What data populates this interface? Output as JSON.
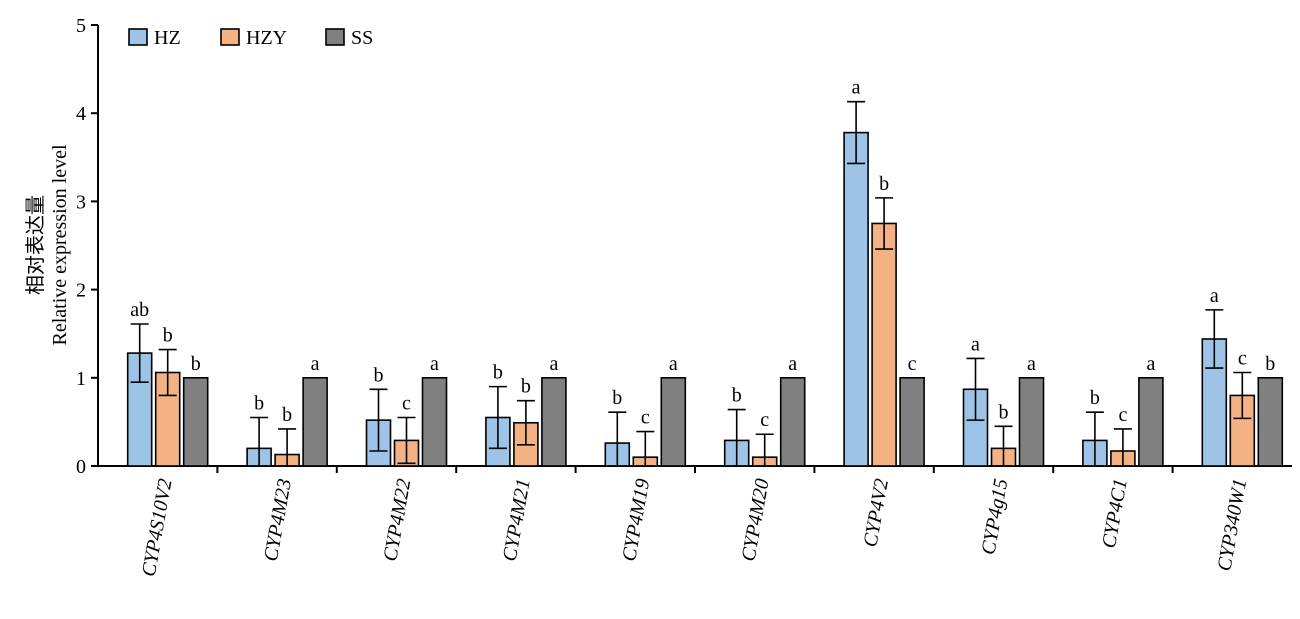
{
  "chart_data": {
    "type": "bar",
    "title": "",
    "ylabel_cn": "相对表达量",
    "ylabel": "Relative expression level",
    "xlabel": "",
    "ylim": [
      0,
      5
    ],
    "yticks": [
      "0",
      "1",
      "2",
      "3",
      "4",
      "5"
    ],
    "legend_position": "top-left",
    "categories": [
      "CYP4S10V2",
      "CYP4M23",
      "CYP4M22",
      "CYP4M21",
      "CYP4M19",
      "CYP4M20",
      "CYP4V2",
      "CYP4g15",
      "CYP4C1",
      "CYP340W1"
    ],
    "series": [
      {
        "name": "HZ",
        "color": "#9dc3e6",
        "values": [
          1.28,
          0.2,
          0.52,
          0.55,
          0.26,
          0.29,
          3.78,
          0.87,
          0.29,
          1.44
        ],
        "errors": [
          0.33,
          0.35,
          0.35,
          0.35,
          0.35,
          0.35,
          0.35,
          0.35,
          0.32,
          0.33
        ],
        "sig": [
          "ab",
          "b",
          "b",
          "b",
          "b",
          "b",
          "a",
          "a",
          "b",
          "a"
        ]
      },
      {
        "name": "HZY",
        "color": "#f4b183",
        "values": [
          1.06,
          0.13,
          0.29,
          0.49,
          0.1,
          0.1,
          2.75,
          0.2,
          0.17,
          0.8
        ],
        "errors": [
          0.26,
          0.29,
          0.26,
          0.25,
          0.29,
          0.26,
          0.29,
          0.25,
          0.25,
          0.26
        ],
        "sig": [
          "b",
          "b",
          "c",
          "b",
          "c",
          "c",
          "b",
          "b",
          "c",
          "c"
        ]
      },
      {
        "name": "SS",
        "color": "#808080",
        "values": [
          1,
          1,
          1,
          1,
          1,
          1,
          1,
          1,
          1,
          1
        ],
        "errors": [
          0,
          0,
          0,
          0,
          0,
          0,
          0,
          0,
          0,
          0
        ],
        "sig": [
          "b",
          "a",
          "a",
          "a",
          "a",
          "a",
          "c",
          "a",
          "a",
          "b"
        ]
      }
    ]
  }
}
